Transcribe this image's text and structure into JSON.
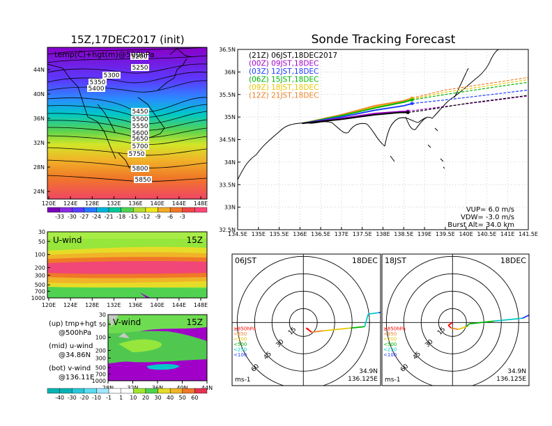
{
  "left_panel": {
    "title": "15Z,17DEC2017 (init)",
    "map_overlay": "temp(C)+hgt(m)@500hPa",
    "lon_ticks": [
      "120E",
      "124E",
      "128E",
      "132E",
      "136E",
      "140E",
      "144E",
      "148E"
    ],
    "lat_ticks": [
      "44N",
      "40N",
      "36N",
      "32N",
      "28N",
      "24N"
    ],
    "contour_labels": [
      "5200",
      "5250",
      "5300",
      "5350",
      "5400",
      "5450",
      "5500",
      "5550",
      "5600",
      "5650",
      "5700",
      "5750",
      "5800",
      "5850"
    ],
    "temp_colorbar": [
      "-33",
      "-30",
      "-27",
      "-24",
      "-21",
      "-18",
      "-15",
      "-12",
      "-9",
      "-6",
      "-3"
    ],
    "uwind": {
      "label": "U-wind",
      "time": "15Z",
      "p_ticks": [
        "30",
        "50",
        "100",
        "200",
        "300",
        "500",
        "700",
        "1000"
      ],
      "lon_ticks": [
        "120E",
        "124E",
        "128E",
        "132E",
        "136E",
        "140E",
        "144E",
        "148E"
      ]
    },
    "vwind": {
      "label": "V-wind",
      "time": "15Z",
      "p_ticks": [
        "30",
        "50",
        "100",
        "200",
        "300",
        "500",
        "700",
        "1000"
      ],
      "lat_ticks": [
        "28N",
        "32N",
        "36N",
        "40N",
        "44N"
      ]
    },
    "legend": {
      "up": "(up) tmp+hgt",
      "up2": "@500hPa",
      "mid": "(mid) u-wind",
      "mid2": "@34.86N",
      "bot": "(bot) v-wind",
      "bot2": "@136.11E"
    },
    "wind_colorbar": [
      "-40",
      "-30",
      "-20",
      "-10",
      "-1",
      "1",
      "10",
      "20",
      "30",
      "40",
      "50",
      "60"
    ]
  },
  "track_map": {
    "title": "Sonde Tracking Forecast",
    "lat_ticks": [
      "36.5N",
      "36N",
      "35.5N",
      "35N",
      "34.5N",
      "34N",
      "33.5N",
      "33N",
      "32.5N"
    ],
    "lon_ticks": [
      "134.5E",
      "135E",
      "135.5E",
      "136E",
      "136.5E",
      "137E",
      "137.5E",
      "138E",
      "138.5E",
      "139E",
      "139.5E",
      "140E",
      "140.5E",
      "141E",
      "141.5E"
    ],
    "legend": [
      {
        "text": "(21Z)  06JST,18DEC2017",
        "color": "#000000"
      },
      {
        "text": "(00Z)  09JST,18DEC",
        "color": "#a000c8"
      },
      {
        "text": "(03Z)  12JST,18DEC",
        "color": "#1e3cff"
      },
      {
        "text": "(06Z)  15JST,18DEC",
        "color": "#00b400"
      },
      {
        "text": "(09Z)  18JST,18DEC",
        "color": "#e6c800"
      },
      {
        "text": "(12Z)  21JST,18DEC",
        "color": "#f08228"
      }
    ],
    "vup": "VUP=  6.0  m/s",
    "vdw": "VDW= -3.0  m/s",
    "burst": "Burst Alt=  34.0  km"
  },
  "polar_left": {
    "time": "06JST",
    "date": "18DEC",
    "lat": "34.9N",
    "lon": "136.125E",
    "unit": "ms-1"
  },
  "polar_right": {
    "time": "18JST",
    "date": "18DEC",
    "lat": "34.9N",
    "lon": "136.125E",
    "unit": "ms-1"
  },
  "polar_rings": [
    "15",
    "30",
    "45",
    "60"
  ],
  "polar_legend": [
    {
      "text": "≥850hPa",
      "color": "#ff0000"
    },
    {
      "text": "<850",
      "color": "#f08228"
    },
    {
      "text": "<700",
      "color": "#e6c800"
    },
    {
      "text": "<500",
      "color": "#00b400"
    },
    {
      "text": "<250",
      "color": "#00c8c8"
    },
    {
      "text": "<100",
      "color": "#1e3cff"
    }
  ],
  "colors": {
    "temp_scale": [
      "#7a00b8",
      "#8a2be2",
      "#5a3cff",
      "#2878ff",
      "#00b4dc",
      "#00c896",
      "#50d250",
      "#b4dc32",
      "#f0e61e",
      "#f0aa28",
      "#f07828",
      "#f04646",
      "#ff4678"
    ],
    "wind_scale": [
      "#00b4b4",
      "#28c8dc",
      "#5adcf0",
      "#a0e6ff",
      "#ffffff",
      "#ffffff",
      "#a0e632",
      "#50d250",
      "#e6dc28",
      "#f0b428",
      "#f07828",
      "#e63250"
    ]
  },
  "chart_data": [
    {
      "type": "heatmap",
      "title": "15Z,17DEC2017 (init)",
      "subtitle": "temp(C)+hgt(m)@500hPa",
      "xlim": [
        120,
        150
      ],
      "ylim": [
        22,
        48
      ],
      "contours": [
        5200,
        5250,
        5300,
        5350,
        5400,
        5450,
        5500,
        5550,
        5600,
        5650,
        5700,
        5750,
        5800,
        5850
      ],
      "colorbar": [
        -33,
        -30,
        -27,
        -24,
        -21,
        -18,
        -15,
        -12,
        -9,
        -6,
        -3
      ]
    },
    {
      "type": "heatmap",
      "title": "U-wind",
      "xlim": [
        120,
        150
      ],
      "ylim": [
        1000,
        30
      ]
    },
    {
      "type": "heatmap",
      "title": "V-wind",
      "xlim": [
        28,
        44
      ],
      "ylim": [
        1000,
        30
      ],
      "colorbar": [
        -40,
        -30,
        -20,
        -10,
        -1,
        1,
        10,
        20,
        30,
        40,
        50,
        60
      ]
    },
    {
      "type": "line",
      "title": "Sonde Tracking Forecast",
      "xlim": [
        134.5,
        141.5
      ],
      "ylim": [
        32.5,
        36.5
      ],
      "series": [
        {
          "name": "(21Z)  06JST,18DEC2017",
          "color": "#000000",
          "x": [
            136.05,
            137.0,
            137.8,
            138.4,
            138.6,
            139.0,
            140.0,
            141.0,
            141.5
          ],
          "y": [
            34.86,
            34.95,
            35.05,
            35.1,
            35.1,
            35.15,
            35.3,
            35.42,
            35.48
          ]
        },
        {
          "name": "(00Z)  09JST,18DEC",
          "color": "#a000c8",
          "x": [
            136.05,
            137.0,
            137.8,
            138.4,
            138.6,
            139.2,
            140.5,
            141.5
          ],
          "y": [
            34.86,
            34.97,
            35.08,
            35.12,
            35.13,
            35.2,
            35.35,
            35.47
          ]
        },
        {
          "name": "(03Z)  12JST,18DEC",
          "color": "#1e3cff",
          "x": [
            136.05,
            137.0,
            137.8,
            138.5,
            138.7,
            139.5,
            140.8,
            141.5
          ],
          "y": [
            34.86,
            35.0,
            35.15,
            35.25,
            35.3,
            35.38,
            35.52,
            35.6
          ]
        },
        {
          "name": "(06Z)  15JST,18DEC",
          "color": "#00b400",
          "x": [
            136.05,
            137.0,
            137.8,
            138.5,
            138.7,
            139.5,
            140.8,
            141.5
          ],
          "y": [
            34.86,
            35.03,
            35.2,
            35.33,
            35.38,
            35.5,
            35.68,
            35.77
          ]
        },
        {
          "name": "(09Z)  18JST,18DEC",
          "color": "#e6c800",
          "x": [
            136.05,
            137.0,
            137.8,
            138.5,
            138.7,
            139.5,
            140.8,
            141.5
          ],
          "y": [
            34.86,
            35.03,
            35.22,
            35.33,
            35.4,
            35.55,
            35.73,
            35.83
          ]
        },
        {
          "name": "(12Z)  21JST,18DEC",
          "color": "#f08228",
          "x": [
            136.05,
            137.0,
            137.8,
            138.5,
            138.7,
            139.5,
            140.8,
            141.5
          ],
          "y": [
            34.86,
            35.05,
            35.25,
            35.36,
            35.42,
            35.6,
            35.78,
            35.88
          ]
        }
      ]
    }
  ]
}
